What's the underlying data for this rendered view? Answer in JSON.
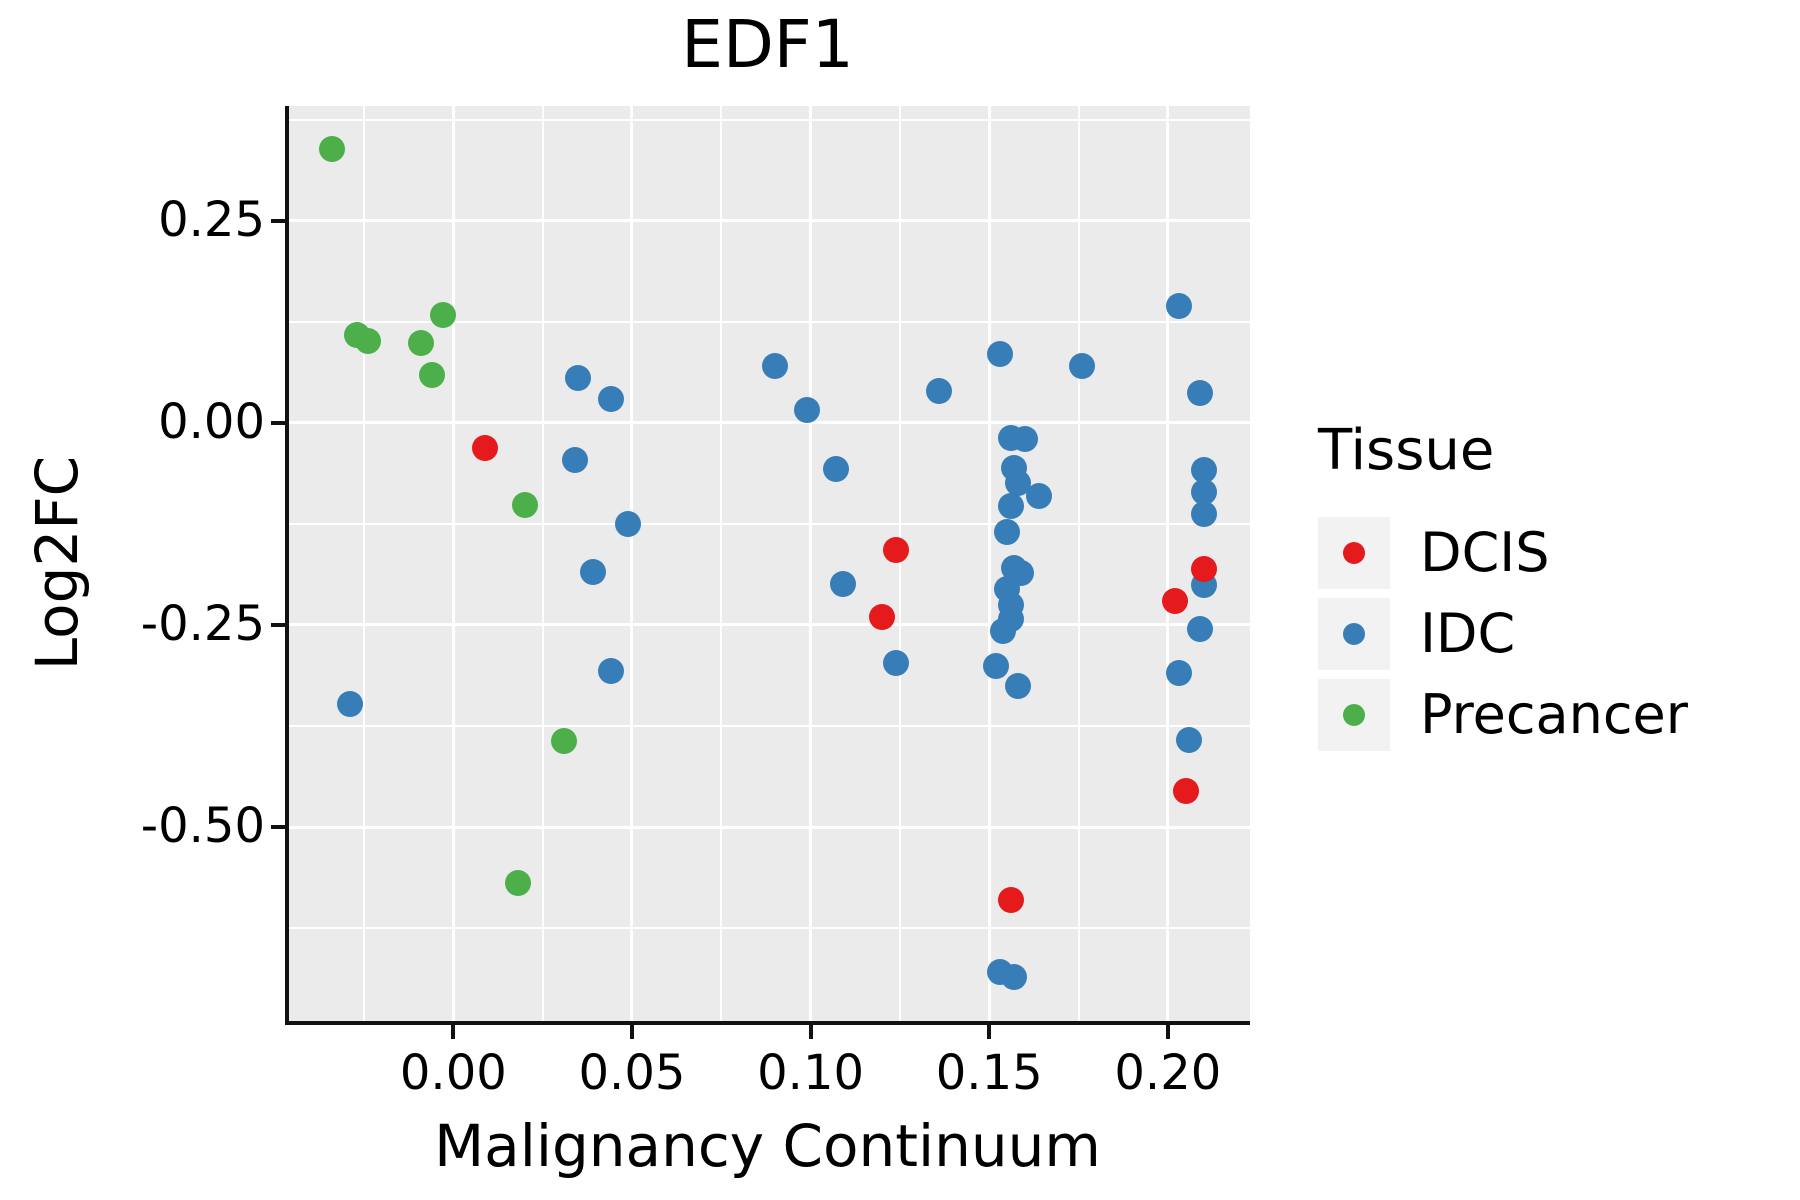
{
  "title": "EDF1",
  "axes": {
    "x_label": "Malignancy Continuum",
    "y_label": "Log2FC",
    "x_ticks": [
      {
        "label": "0.00",
        "value": 0.0
      },
      {
        "label": "0.05",
        "value": 0.05
      },
      {
        "label": "0.10",
        "value": 0.1
      },
      {
        "label": "0.15",
        "value": 0.15
      },
      {
        "label": "0.20",
        "value": 0.2
      }
    ],
    "y_ticks": [
      {
        "label": "0.25",
        "value": 0.25
      },
      {
        "label": "0.00",
        "value": 0.0
      },
      {
        "label": "-0.25",
        "value": -0.25
      },
      {
        "label": "-0.50",
        "value": -0.5
      }
    ],
    "x_minor": [
      -0.025,
      0.025,
      0.075,
      0.125,
      0.175
    ],
    "y_minor": [
      0.375,
      0.125,
      -0.125,
      -0.375,
      -0.625
    ]
  },
  "legend": {
    "title": "Tissue",
    "items": [
      {
        "label": "DCIS",
        "color": "#E41A1C"
      },
      {
        "label": "IDC",
        "color": "#377EB8"
      },
      {
        "label": "Precancer",
        "color": "#4DAF4A"
      }
    ]
  },
  "colors": {
    "panel_background": "#EBEBEB",
    "gridline": "#FFFFFF",
    "axis": "#111111",
    "legend_key": "#F2F2F2",
    "dcis_red": "#E41A1C",
    "idc_blue": "#377EB8",
    "precancer_green": "#4DAF4A"
  },
  "chart_data": {
    "type": "scatter",
    "title": "EDF1",
    "xlabel": "Malignancy Continuum",
    "ylabel": "Log2FC",
    "xlim": [
      -0.046,
      0.223
    ],
    "ylim": [
      -0.74,
      0.392
    ],
    "grid": true,
    "legend_position": "right",
    "legend_title": "Tissue",
    "series": [
      {
        "name": "DCIS",
        "color": "#E41A1C",
        "points": [
          [
            0.009,
            -0.031
          ],
          [
            0.124,
            -0.157
          ],
          [
            0.12,
            -0.24
          ],
          [
            0.156,
            -0.59
          ],
          [
            0.21,
            -0.181
          ],
          [
            0.202,
            -0.22
          ],
          [
            0.205,
            -0.456
          ]
        ]
      },
      {
        "name": "IDC",
        "color": "#377EB8",
        "points": [
          [
            -0.029,
            -0.348
          ],
          [
            0.035,
            0.056
          ],
          [
            0.044,
            0.03
          ],
          [
            0.034,
            -0.046
          ],
          [
            0.049,
            -0.125
          ],
          [
            0.039,
            -0.184
          ],
          [
            0.044,
            -0.307
          ],
          [
            0.09,
            0.07
          ],
          [
            0.099,
            0.016
          ],
          [
            0.107,
            -0.057
          ],
          [
            0.109,
            -0.199
          ],
          [
            0.124,
            -0.297
          ],
          [
            0.136,
            0.04
          ],
          [
            0.153,
            0.085
          ],
          [
            0.176,
            0.07
          ],
          [
            0.156,
            -0.019
          ],
          [
            0.16,
            -0.02
          ],
          [
            0.157,
            -0.056
          ],
          [
            0.158,
            -0.074
          ],
          [
            0.164,
            -0.091
          ],
          [
            0.156,
            -0.103
          ],
          [
            0.155,
            -0.135
          ],
          [
            0.157,
            -0.179
          ],
          [
            0.159,
            -0.186
          ],
          [
            0.155,
            -0.205
          ],
          [
            0.156,
            -0.225
          ],
          [
            0.156,
            -0.243
          ],
          [
            0.154,
            -0.258
          ],
          [
            0.152,
            -0.301
          ],
          [
            0.158,
            -0.326
          ],
          [
            0.153,
            -0.679
          ],
          [
            0.157,
            -0.685
          ],
          [
            0.203,
            0.145
          ],
          [
            0.209,
            0.037
          ],
          [
            0.21,
            -0.058
          ],
          [
            0.21,
            -0.085
          ],
          [
            0.21,
            -0.113
          ],
          [
            0.21,
            -0.2
          ],
          [
            0.209,
            -0.255
          ],
          [
            0.203,
            -0.31
          ],
          [
            0.206,
            -0.392
          ]
        ]
      },
      {
        "name": "Precancer",
        "color": "#4DAF4A",
        "points": [
          [
            -0.034,
            0.339
          ],
          [
            -0.027,
            0.109
          ],
          [
            -0.024,
            0.101
          ],
          [
            -0.009,
            0.099
          ],
          [
            -0.003,
            0.134
          ],
          [
            -0.006,
            0.059
          ],
          [
            0.02,
            -0.102
          ],
          [
            0.031,
            -0.393
          ],
          [
            0.018,
            -0.569
          ]
        ]
      }
    ]
  }
}
